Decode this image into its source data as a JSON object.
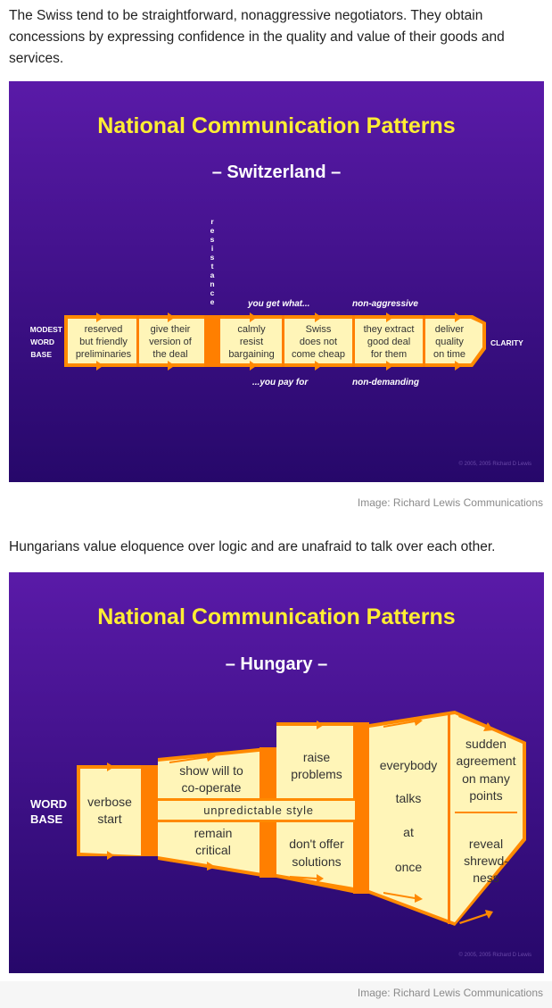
{
  "article": {
    "intro_switzerland": "The Swiss tend to be straightforward, nonaggressive negotiators. They obtain concessions by expressing confidence in the quality and value of their goods and services.",
    "caption_switzerland": "Image: Richard Lewis Communications",
    "intro_hungary": "Hungarians value eloquence over logic and are unafraid to talk over each other.",
    "caption_hungary": "Image: Richard Lewis Communications"
  },
  "colors": {
    "background_top": "#5a1aa8",
    "background_bottom": "#26086a",
    "title": "#ffee33",
    "box_fill": "#fff5b8",
    "separator": "#ff7f00",
    "arrow": "#ff8800"
  },
  "switzerland": {
    "title": "National Communication Patterns",
    "subtitle": "– Switzerland –",
    "start_label": [
      "MODEST",
      "WORD",
      "BASE"
    ],
    "end_label": "CLARITY",
    "resistance_letters": [
      "r",
      "e",
      "s",
      "i",
      "s",
      "t",
      "a",
      "n",
      "c",
      "e"
    ],
    "segments": [
      {
        "lines": [
          "reserved",
          "but friendly",
          "preliminaries"
        ]
      },
      {
        "lines": [
          "give their",
          "version of",
          "the deal"
        ]
      },
      {
        "lines": [
          "calmly",
          "resist",
          "bargaining"
        ]
      },
      {
        "lines": [
          "Swiss",
          "does not",
          "come cheap"
        ]
      },
      {
        "lines": [
          "they extract",
          "good deal",
          "for them"
        ]
      },
      {
        "lines": [
          "deliver",
          "quality",
          "on time"
        ]
      }
    ],
    "annotations_top": [
      "you get what...",
      "non-aggressive"
    ],
    "annotations_bottom": [
      "...you pay for",
      "non-demanding"
    ],
    "copyright": "© 2005, 2005 Richard D Lewis"
  },
  "hungary": {
    "title": "National Communication Patterns",
    "subtitle": "– Hungary –",
    "start_label": [
      "WORD",
      "BASE"
    ],
    "verbose": [
      "verbose",
      "start"
    ],
    "show_will": [
      "show will to",
      "co-operate"
    ],
    "unpredictable": "unpredictable style",
    "remain_critical": [
      "remain",
      "critical"
    ],
    "raise_problems": [
      "raise",
      "problems"
    ],
    "dont_offer": [
      "don't offer",
      "solutions"
    ],
    "everybody": [
      "everybody",
      "talks",
      "at",
      "once"
    ],
    "sudden": [
      "sudden",
      "agreement",
      "on many",
      "points"
    ],
    "reveal": [
      "reveal",
      "shrewd-",
      "ness"
    ],
    "copyright": "© 2005, 2005 Richard D Lewis"
  }
}
